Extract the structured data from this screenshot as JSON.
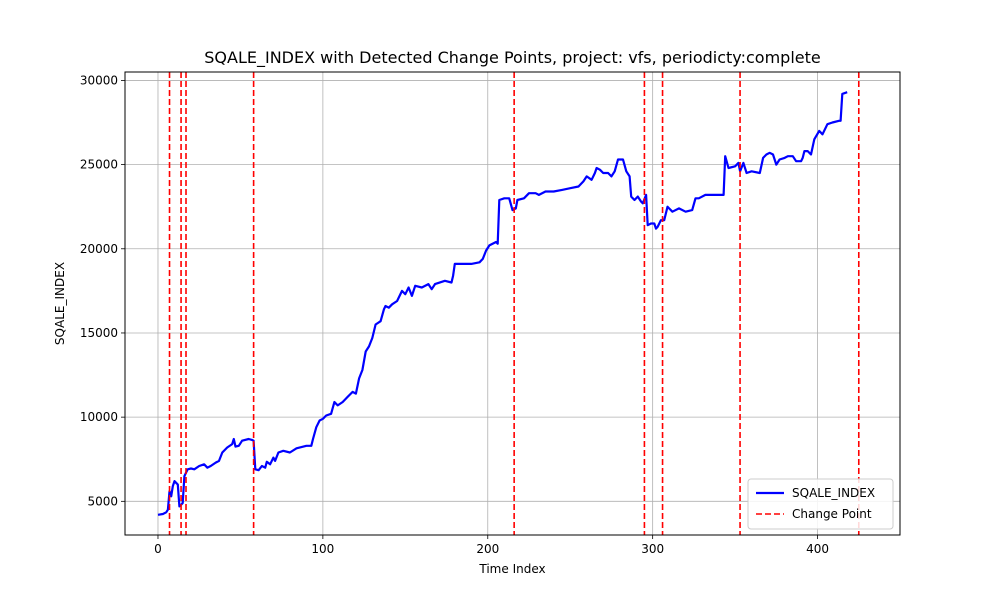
{
  "chart_data": {
    "type": "line",
    "title": "SQALE_INDEX with Detected Change Points, project: vfs, periodicty:complete",
    "xlabel": "Time Index",
    "ylabel": "SQALE_INDEX",
    "xlim": [
      -20,
      450
    ],
    "ylim": [
      3000,
      30500
    ],
    "x_ticks": [
      0,
      100,
      200,
      300,
      400
    ],
    "x_tick_labels": [
      "0",
      "100",
      "200",
      "300",
      "400"
    ],
    "y_ticks": [
      5000,
      10000,
      15000,
      20000,
      25000,
      30000
    ],
    "y_tick_labels": [
      "5000",
      "10000",
      "15000",
      "20000",
      "25000",
      "30000"
    ],
    "grid": true,
    "legend_position": "lower-right",
    "series": [
      {
        "name": "SQALE_INDEX",
        "color": "#0000ff",
        "style": "solid",
        "points": [
          [
            0,
            4200
          ],
          [
            3,
            4250
          ],
          [
            5,
            4350
          ],
          [
            6,
            4500
          ],
          [
            7,
            5600
          ],
          [
            8,
            5300
          ],
          [
            9,
            5900
          ],
          [
            10,
            6200
          ],
          [
            11,
            6100
          ],
          [
            12,
            6000
          ],
          [
            13,
            4700
          ],
          [
            14,
            4800
          ],
          [
            15,
            4900
          ],
          [
            16,
            6500
          ],
          [
            17,
            6700
          ],
          [
            18,
            6900
          ],
          [
            20,
            6950
          ],
          [
            22,
            6900
          ],
          [
            25,
            7100
          ],
          [
            28,
            7200
          ],
          [
            30,
            7000
          ],
          [
            32,
            7100
          ],
          [
            35,
            7300
          ],
          [
            37,
            7400
          ],
          [
            39,
            7900
          ],
          [
            42,
            8200
          ],
          [
            45,
            8400
          ],
          [
            46,
            8700
          ],
          [
            47,
            8250
          ],
          [
            49,
            8300
          ],
          [
            51,
            8600
          ],
          [
            55,
            8700
          ],
          [
            57,
            8650
          ],
          [
            58,
            8600
          ],
          [
            59,
            6900
          ],
          [
            61,
            6850
          ],
          [
            63,
            7100
          ],
          [
            65,
            7000
          ],
          [
            66,
            7350
          ],
          [
            68,
            7200
          ],
          [
            70,
            7600
          ],
          [
            71,
            7400
          ],
          [
            73,
            7900
          ],
          [
            76,
            8000
          ],
          [
            80,
            7900
          ],
          [
            84,
            8150
          ],
          [
            90,
            8300
          ],
          [
            93,
            8300
          ],
          [
            94,
            8700
          ],
          [
            96,
            9400
          ],
          [
            98,
            9800
          ],
          [
            100,
            9900
          ],
          [
            102,
            10100
          ],
          [
            105,
            10200
          ],
          [
            107,
            10900
          ],
          [
            109,
            10700
          ],
          [
            112,
            10900
          ],
          [
            115,
            11200
          ],
          [
            118,
            11500
          ],
          [
            120,
            11400
          ],
          [
            122,
            12300
          ],
          [
            124,
            12800
          ],
          [
            126,
            13900
          ],
          [
            128,
            14200
          ],
          [
            130,
            14700
          ],
          [
            132,
            15500
          ],
          [
            135,
            15700
          ],
          [
            137,
            16400
          ],
          [
            138,
            16600
          ],
          [
            140,
            16500
          ],
          [
            142,
            16700
          ],
          [
            145,
            16900
          ],
          [
            148,
            17500
          ],
          [
            150,
            17300
          ],
          [
            152,
            17700
          ],
          [
            154,
            17200
          ],
          [
            156,
            17800
          ],
          [
            160,
            17700
          ],
          [
            164,
            17900
          ],
          [
            166,
            17600
          ],
          [
            168,
            17900
          ],
          [
            174,
            18100
          ],
          [
            178,
            18000
          ],
          [
            179,
            18400
          ],
          [
            180,
            19100
          ],
          [
            185,
            19100
          ],
          [
            190,
            19100
          ],
          [
            195,
            19200
          ],
          [
            197,
            19400
          ],
          [
            199,
            19900
          ],
          [
            201,
            20200
          ],
          [
            205,
            20400
          ],
          [
            206,
            20300
          ],
          [
            207,
            22900
          ],
          [
            210,
            23000
          ],
          [
            213,
            23000
          ],
          [
            215,
            22300
          ],
          [
            217,
            22400
          ],
          [
            218,
            22900
          ],
          [
            222,
            23000
          ],
          [
            225,
            23300
          ],
          [
            229,
            23300
          ],
          [
            231,
            23200
          ],
          [
            235,
            23400
          ],
          [
            240,
            23400
          ],
          [
            245,
            23500
          ],
          [
            250,
            23600
          ],
          [
            255,
            23700
          ],
          [
            258,
            24000
          ],
          [
            260,
            24300
          ],
          [
            263,
            24100
          ],
          [
            265,
            24500
          ],
          [
            266,
            24800
          ],
          [
            268,
            24700
          ],
          [
            270,
            24500
          ],
          [
            273,
            24500
          ],
          [
            275,
            24300
          ],
          [
            277,
            24600
          ],
          [
            279,
            25300
          ],
          [
            282,
            25300
          ],
          [
            284,
            24600
          ],
          [
            286,
            24300
          ],
          [
            287,
            23100
          ],
          [
            289,
            22900
          ],
          [
            291,
            23100
          ],
          [
            293,
            22800
          ],
          [
            294,
            22700
          ],
          [
            296,
            23200
          ],
          [
            297,
            21400
          ],
          [
            299,
            21500
          ],
          [
            301,
            21500
          ],
          [
            302,
            21200
          ],
          [
            303,
            21300
          ],
          [
            305,
            21700
          ],
          [
            307,
            21700
          ],
          [
            309,
            22500
          ],
          [
            310,
            22400
          ],
          [
            312,
            22200
          ],
          [
            316,
            22400
          ],
          [
            320,
            22200
          ],
          [
            324,
            22300
          ],
          [
            326,
            23000
          ],
          [
            328,
            23000
          ],
          [
            332,
            23200
          ],
          [
            338,
            23200
          ],
          [
            343,
            23200
          ],
          [
            344,
            25500
          ],
          [
            346,
            24800
          ],
          [
            350,
            24900
          ],
          [
            352,
            25100
          ],
          [
            353,
            24600
          ],
          [
            355,
            25100
          ],
          [
            357,
            24500
          ],
          [
            360,
            24600
          ],
          [
            365,
            24500
          ],
          [
            367,
            25400
          ],
          [
            369,
            25600
          ],
          [
            371,
            25700
          ],
          [
            373,
            25600
          ],
          [
            375,
            25000
          ],
          [
            377,
            25300
          ],
          [
            380,
            25400
          ],
          [
            382,
            25500
          ],
          [
            385,
            25500
          ],
          [
            387,
            25200
          ],
          [
            390,
            25200
          ],
          [
            391,
            25400
          ],
          [
            392,
            25800
          ],
          [
            394,
            25800
          ],
          [
            396,
            25600
          ],
          [
            398,
            26500
          ],
          [
            401,
            27000
          ],
          [
            403,
            26800
          ],
          [
            406,
            27400
          ],
          [
            409,
            27500
          ],
          [
            413,
            27600
          ],
          [
            414,
            27600
          ],
          [
            415,
            29200
          ],
          [
            418,
            29300
          ]
        ]
      },
      {
        "name": "Change Point",
        "color": "#ff0000",
        "style": "dashed",
        "x": [
          7,
          14,
          17,
          58,
          216,
          295,
          306,
          353,
          425
        ]
      }
    ]
  }
}
